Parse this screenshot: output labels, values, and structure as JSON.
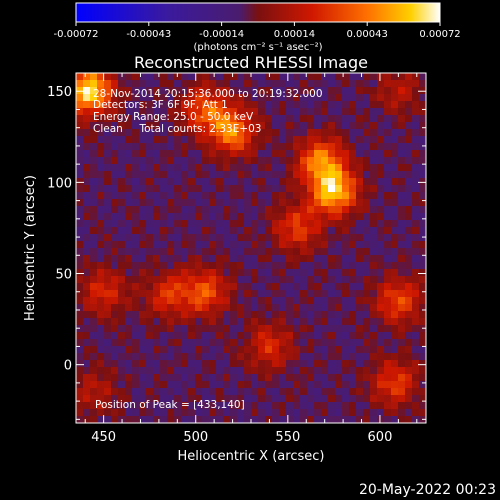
{
  "chart_data": {
    "type": "heatmap",
    "title": "Reconstructed RHESSI Image",
    "xlabel": "Heliocentric X (arcsec)",
    "ylabel": "Heliocentric Y (arcsec)",
    "xlim": [
      435,
      625
    ],
    "ylim": [
      -32,
      160
    ],
    "xticks": [
      450,
      500,
      550,
      600
    ],
    "yticks": [
      0,
      50,
      100,
      150
    ],
    "colorbar": {
      "ticks": [
        "-0.00072",
        "-0.00043",
        "-0.00014",
        "0.00014",
        "0.00043",
        "0.00072"
      ],
      "range": [
        -0.00072,
        0.00072
      ],
      "unit_label": "(photons cm⁻² s⁻¹ asec⁻²)",
      "colormap": [
        "#0000ff",
        "#3a1a9e",
        "#4a1c6e",
        "#7a1010",
        "#d01800",
        "#ff7000",
        "#ffd000",
        "#ffffff"
      ]
    },
    "annotations": {
      "time_range": "28-Nov-2014 20:15:36.000 to 20:19:32.000",
      "detectors": "Detectors: 3F 6F 9F, Att 1",
      "energy": "Energy Range: 25.0 - 50.0 keV",
      "clean": "Clean     Total counts: 2.33E+03",
      "peak": "Position of Peak = [433,140]"
    },
    "sources": [
      {
        "x": 442,
        "y": 150,
        "value": 0.00072
      },
      {
        "x": 505,
        "y": 140,
        "value": 0.0004
      },
      {
        "x": 520,
        "y": 128,
        "value": 0.0005
      },
      {
        "x": 575,
        "y": 95,
        "value": 0.00065
      },
      {
        "x": 568,
        "y": 112,
        "value": 0.0005
      },
      {
        "x": 555,
        "y": 75,
        "value": 0.00035
      },
      {
        "x": 505,
        "y": 40,
        "value": 0.0004
      },
      {
        "x": 485,
        "y": 38,
        "value": 0.0003
      },
      {
        "x": 450,
        "y": 40,
        "value": 0.0003
      },
      {
        "x": 540,
        "y": 10,
        "value": 0.0003
      },
      {
        "x": 610,
        "y": 35,
        "value": 0.00038
      },
      {
        "x": 608,
        "y": -10,
        "value": 0.00035
      },
      {
        "x": 610,
        "y": 150,
        "value": 0.0002
      },
      {
        "x": 445,
        "y": -15,
        "value": 0.0002
      }
    ]
  },
  "footer": {
    "timestamp": "20-May-2022 00:23"
  }
}
